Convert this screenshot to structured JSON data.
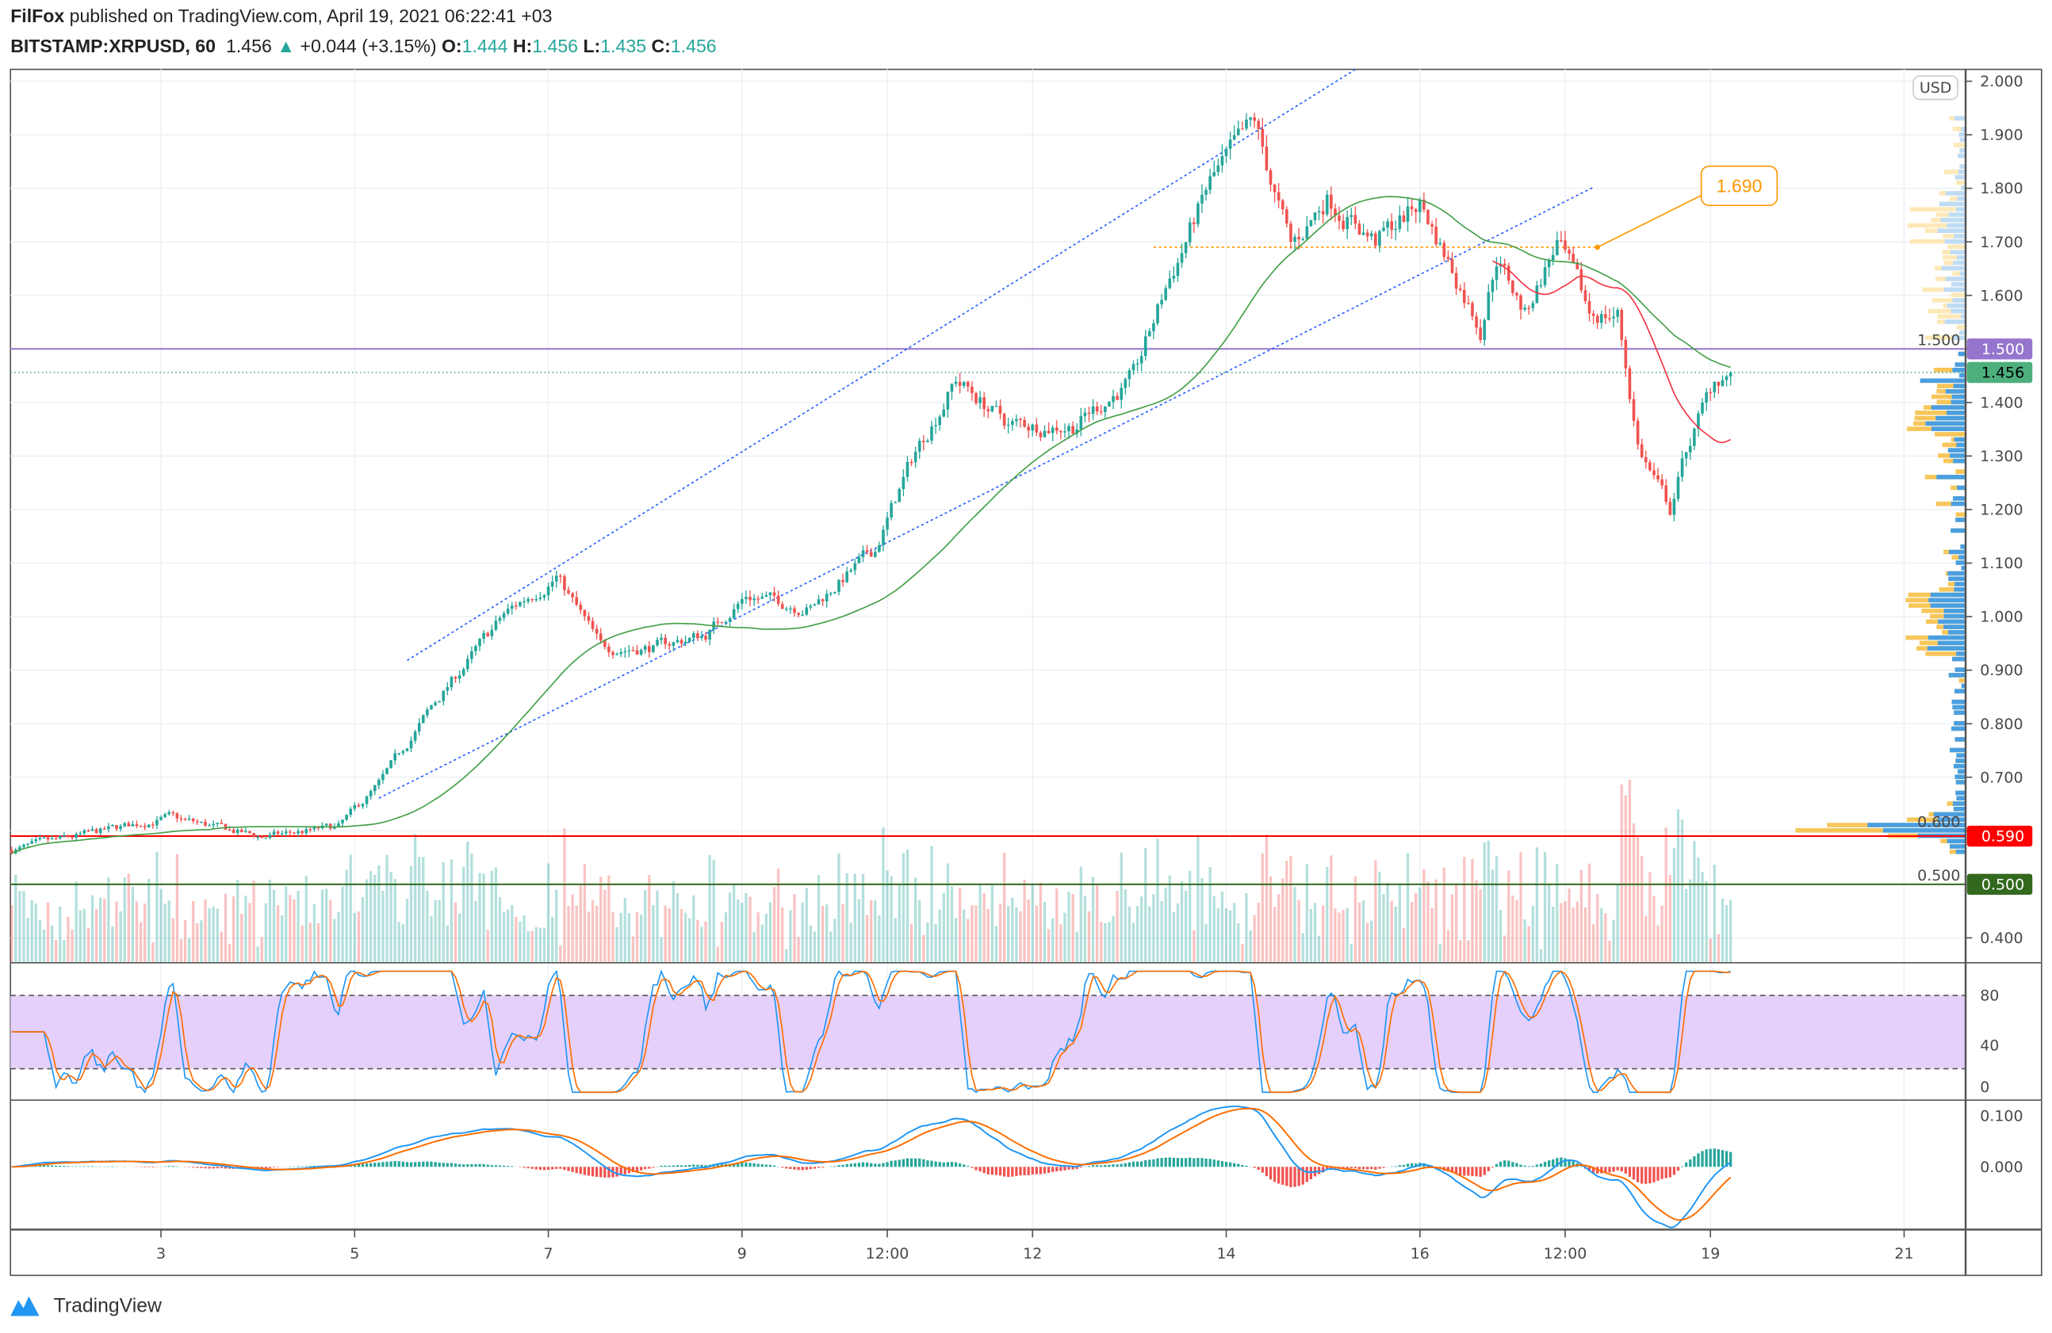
{
  "header": {
    "author": "FilFox",
    "published": " published on TradingView.com, April 19, 2021 06:22:41 +03",
    "symbol": "BITSTAMP:XRPUSD, 60",
    "last": "1.456",
    "change": "+0.044 (+3.15%)",
    "o_label": "O:",
    "o": "1.444",
    "h_label": "H:",
    "h": "1.456",
    "l_label": "L:",
    "l": "1.435",
    "c_label": "C:",
    "c": "1.456"
  },
  "currency": "USD",
  "brand": "TradingView",
  "colors": {
    "up": "#26a69a",
    "down": "#ef5350",
    "channel": "#2962ff",
    "ma_slow": "#43a047",
    "ma_fast": "#f23645",
    "level_orange": "#ff9800"
  },
  "chart_data": {
    "type": "candlestick",
    "interval": "60",
    "price_ticks": [
      "2.000",
      "1.900",
      "1.800",
      "1.700",
      "1.600",
      "1.500",
      "1.400",
      "1.300",
      "1.200",
      "1.100",
      "1.000",
      "0.900",
      "0.800",
      "0.700",
      "0.600",
      "0.500",
      "0.400"
    ],
    "time_ticks": [
      {
        "t": "2021-04-03T00:00",
        "label": "3"
      },
      {
        "t": "2021-04-05T00:00",
        "label": "5"
      },
      {
        "t": "2021-04-07T00:00",
        "label": "7"
      },
      {
        "t": "2021-04-09T00:00",
        "label": "9"
      },
      {
        "t": "2021-04-10T12:00",
        "label": "12:00"
      },
      {
        "t": "2021-04-12T00:00",
        "label": "12"
      },
      {
        "t": "2021-04-14T00:00",
        "label": "14"
      },
      {
        "t": "2021-04-16T00:00",
        "label": "16"
      },
      {
        "t": "2021-04-17T12:00",
        "label": "12:00"
      },
      {
        "t": "2021-04-19T00:00",
        "label": "19"
      },
      {
        "t": "2021-04-21T00:00",
        "label": "21"
      }
    ],
    "close_path": [
      {
        "t": "2021-04-01T11:00",
        "close": 0.564
      },
      {
        "t": "2021-04-03T02:00",
        "close": 0.625
      },
      {
        "t": "2021-04-04T01:00",
        "close": 0.588
      },
      {
        "t": "2021-04-04T20:00",
        "close": 0.607
      },
      {
        "t": "2021-04-05T06:00",
        "close": 0.686
      },
      {
        "t": "2021-04-05T19:00",
        "close": 0.83
      },
      {
        "t": "2021-04-06T13:00",
        "close": 1.003
      },
      {
        "t": "2021-04-07T02:00",
        "close": 1.077
      },
      {
        "t": "2021-04-07T13:00",
        "close": 0.942
      },
      {
        "t": "2021-04-08T02:00",
        "close": 0.942
      },
      {
        "t": "2021-04-08T15:00",
        "close": 0.967
      },
      {
        "t": "2021-04-09T01:00",
        "close": 1.04
      },
      {
        "t": "2021-04-09T17:00",
        "close": 1.016
      },
      {
        "t": "2021-04-10T09:00",
        "close": 1.125
      },
      {
        "t": "2021-04-10T19:00",
        "close": 1.309
      },
      {
        "t": "2021-04-11T05:00",
        "close": 1.443
      },
      {
        "t": "2021-04-11T18:00",
        "close": 1.358
      },
      {
        "t": "2021-04-12T10:00",
        "close": 1.358
      },
      {
        "t": "2021-04-13T01:00",
        "close": 1.443
      },
      {
        "t": "2021-04-13T09:00",
        "close": 1.614
      },
      {
        "t": "2021-04-13T20:00",
        "close": 1.81
      },
      {
        "t": "2021-04-14T07:00",
        "close": 1.92
      },
      {
        "t": "2021-04-14T16:00",
        "close": 1.687
      },
      {
        "t": "2021-04-15T01:00",
        "close": 1.785
      },
      {
        "t": "2021-04-15T13:00",
        "close": 1.7
      },
      {
        "t": "2021-04-16T00:00",
        "close": 1.773
      },
      {
        "t": "2021-04-16T15:00",
        "close": 1.541
      },
      {
        "t": "2021-04-16T19:00",
        "close": 1.675
      },
      {
        "t": "2021-04-17T02:00",
        "close": 1.565
      },
      {
        "t": "2021-04-17T10:00",
        "close": 1.7
      },
      {
        "t": "2021-04-17T18:00",
        "close": 1.565
      },
      {
        "t": "2021-04-18T01:00",
        "close": 1.565
      },
      {
        "t": "2021-04-18T06:00",
        "close": 1.321
      },
      {
        "t": "2021-04-18T09:00",
        "close": 1.272
      },
      {
        "t": "2021-04-18T14:00",
        "close": 1.199
      },
      {
        "t": "2021-04-18T18:00",
        "close": 1.309
      },
      {
        "t": "2021-04-19T01:00",
        "close": 1.443
      },
      {
        "t": "2021-04-19T05:00",
        "close": 1.456
      }
    ],
    "horizontal_levels": [
      {
        "price": 1.5,
        "label": "1.500",
        "color": "#9575cd"
      },
      {
        "price": 0.59,
        "label": "0.590",
        "color": "#ff0000"
      },
      {
        "price": 0.5,
        "label": "0.500",
        "color": "#33691e"
      }
    ],
    "last_price": {
      "price": 1.456,
      "label": "1.456",
      "color": "#4caf7d"
    },
    "trendlines": [
      {
        "from": {
          "t": "2021-04-05T13:00",
          "price": 0.918
        },
        "to": {
          "t": "2021-04-15T08:00",
          "price": 2.022
        }
      },
      {
        "from": {
          "t": "2021-04-05T06:00",
          "price": 0.661
        },
        "to": {
          "t": "2021-04-17T19:00",
          "price": 1.802
        }
      }
    ],
    "price_level_line": {
      "price": 1.69,
      "from": "2021-04-13T06:00",
      "to": "2021-04-17T20:00",
      "label": "1.690"
    },
    "callout_anchor": {
      "t": "2021-04-19T00:00",
      "price": 1.805
    },
    "stoch_rsi": {
      "ticks": [
        "80",
        "40",
        "0"
      ],
      "band": [
        20,
        80
      ]
    },
    "macd": {
      "ticks": [
        "0.100",
        "0.000"
      ]
    }
  }
}
